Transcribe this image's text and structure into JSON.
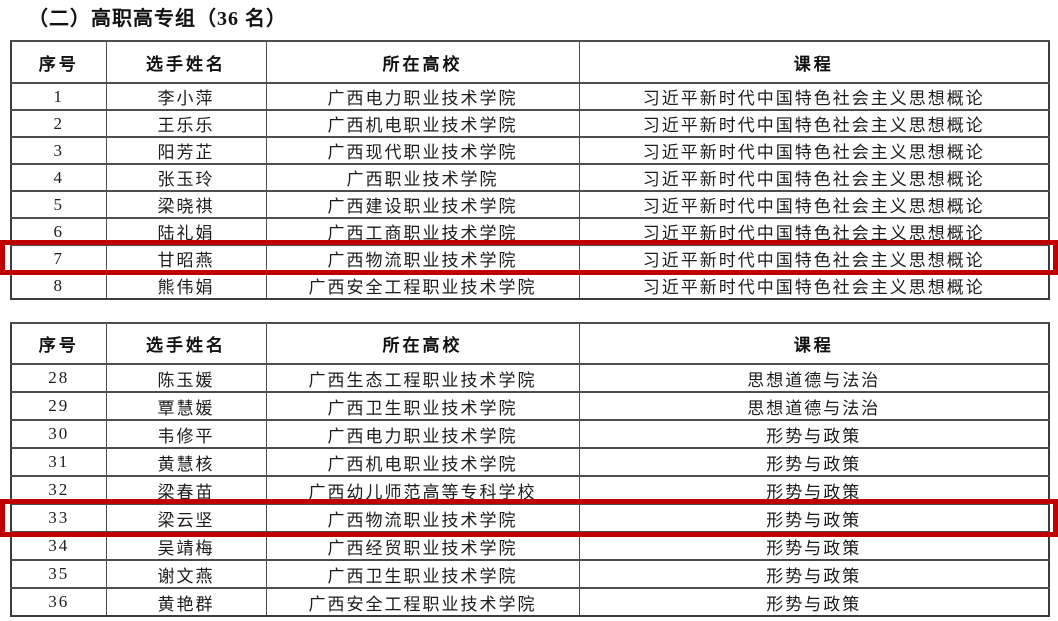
{
  "title": "（二）高职高专组（36 名）",
  "highlight_color": "#c00000",
  "tables": [
    {
      "columns": [
        "序号",
        "选手姓名",
        "所在高校",
        "课程"
      ],
      "rows": [
        {
          "no": "1",
          "name": "李小萍",
          "school": "广西电力职业技术学院",
          "course": "习近平新时代中国特色社会主义思想概论",
          "highlighted": false
        },
        {
          "no": "2",
          "name": "王乐乐",
          "school": "广西机电职业技术学院",
          "course": "习近平新时代中国特色社会主义思想概论",
          "highlighted": false
        },
        {
          "no": "3",
          "name": "阳芳芷",
          "school": "广西现代职业技术学院",
          "course": "习近平新时代中国特色社会主义思想概论",
          "highlighted": false
        },
        {
          "no": "4",
          "name": "张玉玲",
          "school": "广西职业技术学院",
          "course": "习近平新时代中国特色社会主义思想概论",
          "highlighted": false
        },
        {
          "no": "5",
          "name": "梁晓祺",
          "school": "广西建设职业技术学院",
          "course": "习近平新时代中国特色社会主义思想概论",
          "highlighted": false
        },
        {
          "no": "6",
          "name": "陆礼娟",
          "school": "广西工商职业技术学院",
          "course": "习近平新时代中国特色社会主义思想概论",
          "highlighted": false
        },
        {
          "no": "7",
          "name": "甘昭燕",
          "school": "广西物流职业技术学院",
          "course": "习近平新时代中国特色社会主义思想概论",
          "highlighted": true
        },
        {
          "no": "8",
          "name": "熊伟娟",
          "school": "广西安全工程职业技术学院",
          "course": "习近平新时代中国特色社会主义思想概论",
          "highlighted": false
        }
      ]
    },
    {
      "columns": [
        "序号",
        "选手姓名",
        "所在高校",
        "课程"
      ],
      "rows": [
        {
          "no": "28",
          "name": "陈玉媛",
          "school": "广西生态工程职业技术学院",
          "course": "思想道德与法治",
          "highlighted": false
        },
        {
          "no": "29",
          "name": "覃慧媛",
          "school": "广西卫生职业技术学院",
          "course": "思想道德与法治",
          "highlighted": false
        },
        {
          "no": "30",
          "name": "韦修平",
          "school": "广西电力职业技术学院",
          "course": "形势与政策",
          "highlighted": false
        },
        {
          "no": "31",
          "name": "黄慧核",
          "school": "广西机电职业技术学院",
          "course": "形势与政策",
          "highlighted": false
        },
        {
          "no": "32",
          "name": "梁春苗",
          "school": "广西幼儿师范高等专科学校",
          "course": "形势与政策",
          "highlighted": false
        },
        {
          "no": "33",
          "name": "梁云坚",
          "school": "广西物流职业技术学院",
          "course": "形势与政策",
          "highlighted": true
        },
        {
          "no": "34",
          "name": "吴靖梅",
          "school": "广西经贸职业技术学院",
          "course": "形势与政策",
          "highlighted": false
        },
        {
          "no": "35",
          "name": "谢文燕",
          "school": "广西卫生职业技术学院",
          "course": "形势与政策",
          "highlighted": false
        },
        {
          "no": "36",
          "name": "黄艳群",
          "school": "广西安全工程职业技术学院",
          "course": "形势与政策",
          "highlighted": false
        }
      ]
    }
  ]
}
